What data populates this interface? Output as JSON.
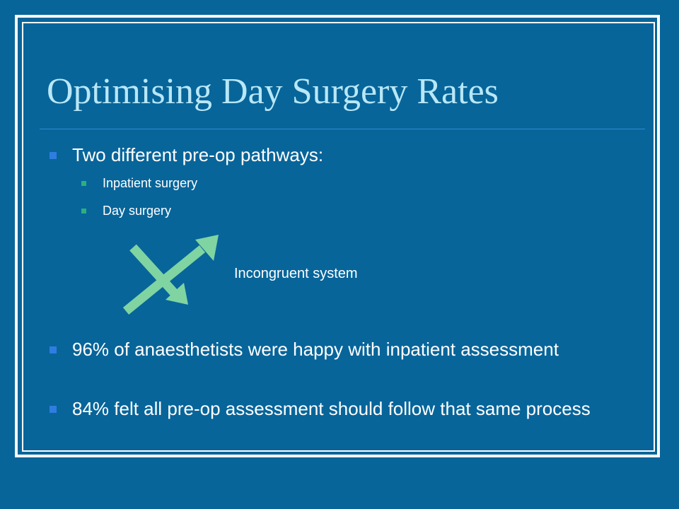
{
  "slide": {
    "title": "Optimising Day Surgery Rates",
    "bullets": [
      {
        "text": "Two different pre-op pathways:",
        "sub": [
          "Inpatient surgery",
          "Day surgery"
        ]
      },
      {
        "text": "96% of anaesthetists were happy with inpatient assessment"
      },
      {
        "text": "84% felt all pre-op assessment should follow that same process"
      }
    ],
    "diagram_label": "Incongruent system"
  },
  "colors": {
    "background": "#07659a",
    "title": "#b8e7f7",
    "text": "#ffffff",
    "bullet_marker": "#2f7de0",
    "sub_bullet_marker": "#2bb07c",
    "arrow": "#7fd4a2"
  },
  "icons": {
    "diagram": "crossed-arrows-icon"
  }
}
